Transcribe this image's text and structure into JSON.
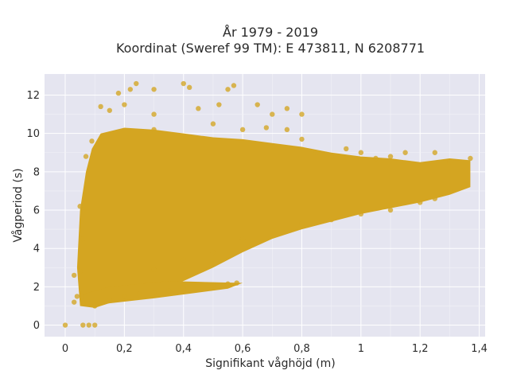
{
  "chart_data": {
    "type": "scatter",
    "title_line1": "År 1979 - 2019",
    "title_line2": "Koordinat (Sweref 99 TM): E 473811, N 6208771",
    "xlabel": "Signifikant våghöjd (m)",
    "ylabel": "Vågperiod (s)",
    "xlim": [
      -0.07,
      1.42
    ],
    "ylim": [
      -0.6,
      13.1
    ],
    "x_ticks": [
      0,
      0.2,
      0.4,
      0.6,
      0.8,
      1.0,
      1.2,
      1.4
    ],
    "x_tick_labels": [
      "0",
      "0,2",
      "0,4",
      "0,6",
      "0,8",
      "1",
      "1,2",
      "1,4"
    ],
    "y_ticks": [
      0,
      2,
      4,
      6,
      8,
      10,
      12
    ],
    "y_tick_labels": [
      "0",
      "2",
      "4",
      "6",
      "8",
      "10",
      "12"
    ],
    "grid": true,
    "marker_color": "#d4a521",
    "plot_background": "#e5e5f0",
    "series": [
      {
        "values": [
          {
            "x": 0.0,
            "y": 0.0
          },
          {
            "x": 0.06,
            "y": 0.0
          },
          {
            "x": 0.08,
            "y": 0.0
          },
          {
            "x": 0.1,
            "y": 0.0
          },
          {
            "x": 0.03,
            "y": 1.2
          },
          {
            "x": 0.04,
            "y": 1.5
          },
          {
            "x": 0.05,
            "y": 2.8
          },
          {
            "x": 0.03,
            "y": 2.6
          },
          {
            "x": 0.06,
            "y": 4.5
          },
          {
            "x": 0.05,
            "y": 6.2
          },
          {
            "x": 0.07,
            "y": 8.8
          },
          {
            "x": 0.09,
            "y": 9.6
          },
          {
            "x": 0.1,
            "y": 1.0
          },
          {
            "x": 0.15,
            "y": 1.3
          },
          {
            "x": 0.2,
            "y": 1.5
          },
          {
            "x": 0.25,
            "y": 1.6
          },
          {
            "x": 0.3,
            "y": 1.7
          },
          {
            "x": 0.35,
            "y": 1.8
          },
          {
            "x": 0.4,
            "y": 1.9
          },
          {
            "x": 0.45,
            "y": 2.0
          },
          {
            "x": 0.5,
            "y": 2.1
          },
          {
            "x": 0.55,
            "y": 2.15
          },
          {
            "x": 0.58,
            "y": 2.2
          },
          {
            "x": 0.12,
            "y": 11.4
          },
          {
            "x": 0.15,
            "y": 11.2
          },
          {
            "x": 0.2,
            "y": 11.5
          },
          {
            "x": 0.22,
            "y": 12.3
          },
          {
            "x": 0.24,
            "y": 12.6
          },
          {
            "x": 0.18,
            "y": 12.1
          },
          {
            "x": 0.3,
            "y": 12.3
          },
          {
            "x": 0.4,
            "y": 12.6
          },
          {
            "x": 0.42,
            "y": 12.4
          },
          {
            "x": 0.55,
            "y": 12.3
          },
          {
            "x": 0.57,
            "y": 12.5
          },
          {
            "x": 0.3,
            "y": 11.0
          },
          {
            "x": 0.45,
            "y": 11.3
          },
          {
            "x": 0.52,
            "y": 11.5
          },
          {
            "x": 0.65,
            "y": 11.5
          },
          {
            "x": 0.7,
            "y": 11.0
          },
          {
            "x": 0.75,
            "y": 11.3
          },
          {
            "x": 0.8,
            "y": 11.0
          },
          {
            "x": 0.3,
            "y": 10.2
          },
          {
            "x": 0.5,
            "y": 10.5
          },
          {
            "x": 0.6,
            "y": 10.2
          },
          {
            "x": 0.68,
            "y": 10.3
          },
          {
            "x": 0.75,
            "y": 10.2
          },
          {
            "x": 0.8,
            "y": 9.7
          },
          {
            "x": 0.85,
            "y": 9.0
          },
          {
            "x": 0.9,
            "y": 8.8
          },
          {
            "x": 0.95,
            "y": 9.2
          },
          {
            "x": 1.0,
            "y": 9.0
          },
          {
            "x": 1.05,
            "y": 8.7
          },
          {
            "x": 1.1,
            "y": 8.8
          },
          {
            "x": 1.15,
            "y": 9.0
          },
          {
            "x": 1.25,
            "y": 9.0
          },
          {
            "x": 1.3,
            "y": 8.5
          },
          {
            "x": 1.37,
            "y": 8.7
          },
          {
            "x": 1.35,
            "y": 7.3
          },
          {
            "x": 1.3,
            "y": 7.0
          },
          {
            "x": 1.25,
            "y": 6.6
          },
          {
            "x": 1.2,
            "y": 6.4
          },
          {
            "x": 1.1,
            "y": 6.0
          },
          {
            "x": 1.0,
            "y": 5.8
          },
          {
            "x": 0.9,
            "y": 5.5
          },
          {
            "x": 0.8,
            "y": 5.3
          },
          {
            "x": 0.7,
            "y": 4.9
          },
          {
            "x": 0.6,
            "y": 4.5
          },
          {
            "x": 0.5,
            "y": 3.8
          },
          {
            "x": 0.4,
            "y": 3.4
          },
          {
            "x": 0.3,
            "y": 2.9
          }
        ]
      }
    ]
  }
}
